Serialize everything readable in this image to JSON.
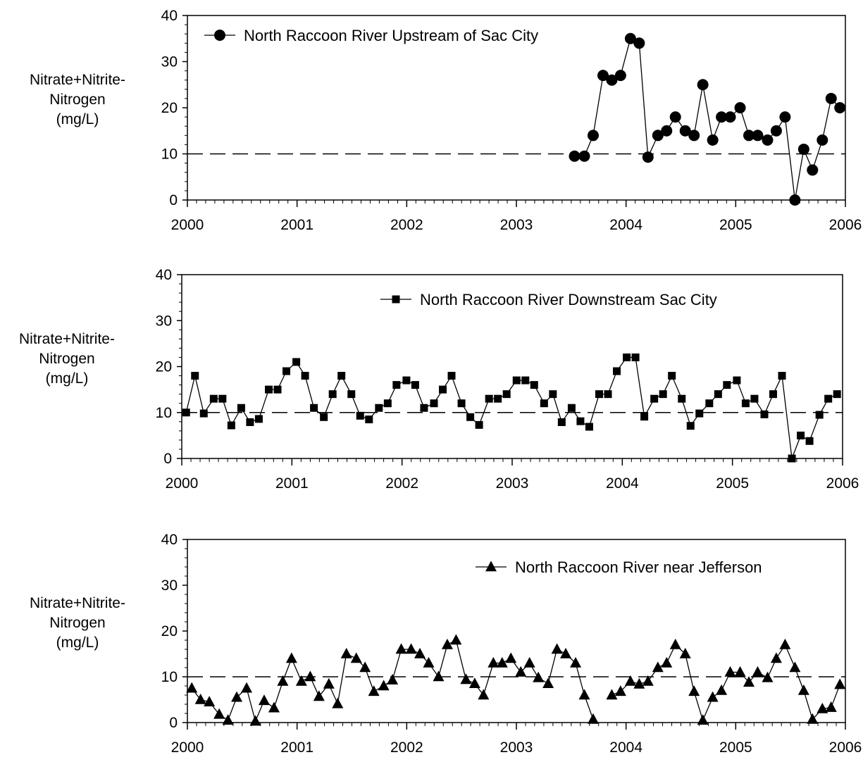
{
  "chart_data": [
    {
      "type": "line",
      "ylabel_lines": [
        "Nitrate+Nitrite-",
        "Nitrogen",
        "(mg/L)"
      ],
      "xlim": [
        2000,
        2006
      ],
      "ylim": [
        0,
        40
      ],
      "x_ticks": [
        "2000",
        "2001",
        "2002",
        "2003",
        "2004",
        "2005",
        "2006"
      ],
      "y_ticks": [
        "0",
        "10",
        "20",
        "30",
        "40"
      ],
      "reference_line": 10,
      "grid": false,
      "legend_position": "top-left",
      "series": [
        {
          "name": "North Raccoon River Upstream of Sac City",
          "marker": "circle",
          "x": [
            2003.53,
            2003.62,
            2003.7,
            2003.79,
            2003.87,
            2003.95,
            2004.04,
            2004.12,
            2004.2,
            2004.29,
            2004.37,
            2004.45,
            2004.54,
            2004.62,
            2004.7,
            2004.79,
            2004.87,
            2004.95,
            2005.04,
            2005.12,
            2005.2,
            2005.29,
            2005.37,
            2005.45,
            2005.54,
            2005.62,
            2005.7,
            2005.79,
            2005.87,
            2005.95
          ],
          "values": [
            9.5,
            9.5,
            14,
            27,
            26,
            27,
            35,
            34,
            9.3,
            14,
            15,
            18,
            15,
            14,
            25,
            13,
            18,
            18,
            20,
            14,
            14,
            13,
            15,
            18,
            0,
            11,
            6.5,
            13,
            22,
            20
          ]
        }
      ]
    },
    {
      "type": "line",
      "ylabel_lines": [
        "Nitrate+Nitrite-",
        "Nitrogen",
        "(mg/L)"
      ],
      "xlim": [
        2000,
        2006
      ],
      "ylim": [
        0,
        40
      ],
      "x_ticks": [
        "2000",
        "2001",
        "2002",
        "2003",
        "2004",
        "2005",
        "2006"
      ],
      "y_ticks": [
        "0",
        "10",
        "20",
        "30",
        "40"
      ],
      "reference_line": 10,
      "grid": false,
      "legend_position": "top-right",
      "series": [
        {
          "name": "North Raccoon River Downstream Sac City",
          "marker": "square",
          "x": [
            2000.04,
            2000.12,
            2000.2,
            2000.29,
            2000.37,
            2000.45,
            2000.54,
            2000.62,
            2000.7,
            2000.79,
            2000.87,
            2000.95,
            2001.04,
            2001.12,
            2001.2,
            2001.29,
            2001.37,
            2001.45,
            2001.54,
            2001.62,
            2001.7,
            2001.79,
            2001.87,
            2001.95,
            2002.04,
            2002.12,
            2002.2,
            2002.29,
            2002.37,
            2002.45,
            2002.54,
            2002.62,
            2002.7,
            2002.79,
            2002.87,
            2002.95,
            2003.04,
            2003.12,
            2003.2,
            2003.29,
            2003.37,
            2003.45,
            2003.54,
            2003.62,
            2003.7,
            2003.79,
            2003.87,
            2003.95,
            2004.04,
            2004.12,
            2004.2,
            2004.29,
            2004.37,
            2004.45,
            2004.54,
            2004.62,
            2004.7,
            2004.79,
            2004.87,
            2004.95,
            2005.04,
            2005.12,
            2005.2,
            2005.29,
            2005.37,
            2005.45,
            2005.54,
            2005.62,
            2005.7,
            2005.79,
            2005.87,
            2005.95
          ],
          "values": [
            10,
            18,
            9.8,
            13,
            13,
            7.2,
            11,
            7.9,
            8.6,
            15,
            15,
            19,
            21,
            18,
            11,
            9,
            14,
            18,
            14,
            9.3,
            8.5,
            11,
            12,
            16,
            17,
            16,
            11,
            12,
            15,
            18,
            12,
            9,
            7.3,
            13,
            13,
            14,
            17,
            17,
            16,
            12,
            14,
            7.9,
            11,
            8.1,
            6.9,
            14,
            14,
            19,
            22,
            22,
            9.1,
            13,
            14,
            18,
            13,
            7.1,
            9.8,
            12,
            14,
            16,
            17,
            12,
            13,
            9.6,
            14,
            18,
            0,
            5,
            3.8,
            9.5,
            13,
            14
          ]
        }
      ]
    },
    {
      "type": "line",
      "ylabel_lines": [
        "Nitrate+Nitrite-",
        "Nitrogen",
        "(mg/L)"
      ],
      "xlim": [
        2000,
        2006
      ],
      "ylim": [
        0,
        40
      ],
      "x_ticks": [
        "2000",
        "2001",
        "2002",
        "2003",
        "2004",
        "2005",
        "2006"
      ],
      "y_ticks": [
        "0",
        "10",
        "20",
        "30",
        "40"
      ],
      "reference_line": 10,
      "grid": false,
      "legend_position": "top-right",
      "series": [
        {
          "name": "North Raccoon River near Jefferson",
          "marker": "triangle",
          "segments": [
            {
              "x": [
                2000.04,
                2000.12,
                2000.2,
                2000.29,
                2000.37,
                2000.45,
                2000.54,
                2000.62,
                2000.7,
                2000.79,
                2000.87,
                2000.95,
                2001.04,
                2001.12,
                2001.2,
                2001.29,
                2001.37,
                2001.45,
                2001.54,
                2001.62,
                2001.7,
                2001.79,
                2001.87,
                2001.95,
                2002.04,
                2002.12,
                2002.2,
                2002.29,
                2002.37,
                2002.45,
                2002.54,
                2002.62,
                2002.7,
                2002.79,
                2002.87,
                2002.95,
                2003.04,
                2003.12,
                2003.2,
                2003.29,
                2003.37,
                2003.45,
                2003.54,
                2003.62,
                2003.7
              ],
              "values": [
                7.5,
                5,
                4.5,
                1.8,
                0.5,
                5.5,
                7.5,
                0.3,
                4.8,
                3.2,
                9,
                14,
                9,
                10,
                5.7,
                8.4,
                4.1,
                15,
                14,
                12,
                6.8,
                8,
                9.3,
                16,
                16,
                15,
                13,
                10,
                17,
                18,
                9.4,
                8.5,
                6,
                13,
                13,
                14,
                11,
                13,
                9.8,
                8.5,
                16,
                15,
                13,
                6,
                0.7
              ]
            },
            {
              "x": [
                2003.87,
                2003.95,
                2004.04,
                2004.12,
                2004.2,
                2004.29,
                2004.37,
                2004.45,
                2004.54,
                2004.62,
                2004.7,
                2004.79,
                2004.87,
                2004.95,
                2005.04,
                2005.12,
                2005.2,
                2005.29,
                2005.37,
                2005.45,
                2005.54,
                2005.62,
                2005.7,
                2005.79,
                2005.87,
                2005.95
              ],
              "values": [
                6,
                6.8,
                9,
                8.4,
                9,
                12,
                13,
                17,
                15,
                6.8,
                0.5,
                5.5,
                7,
                11,
                11,
                8.8,
                11,
                9.8,
                14,
                17,
                12,
                7,
                0.7,
                3,
                3.3,
                8.3
              ]
            }
          ]
        }
      ]
    }
  ]
}
